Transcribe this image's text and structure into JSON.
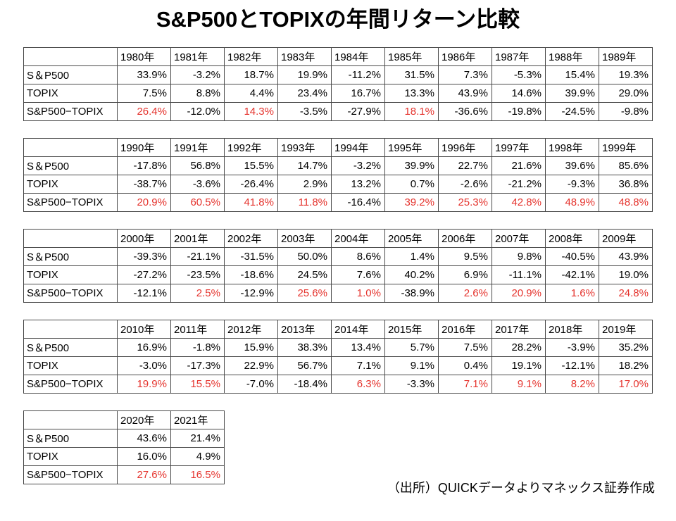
{
  "title": "S&P500とTOPIXの年間リターン比較",
  "source_note": "（出所）QUICKデータよりマネックス証券作成",
  "colors": {
    "diff_positive": "#e5332d",
    "text": "#000000",
    "border": "#4a4a4a",
    "background": "#ffffff"
  },
  "chart_data": {
    "type": "table",
    "title": "S&P500とTOPIXの年間リターン比較",
    "row_labels": [
      "S＆P500",
      "TOPIX",
      "S&P500−TOPIX"
    ],
    "row_keys": [
      "sp500",
      "topix",
      "diff"
    ],
    "value_suffix": "%",
    "note": "diff row values greater than 0 are shown in red",
    "tables": [
      {
        "years": [
          "1980年",
          "1981年",
          "1982年",
          "1983年",
          "1984年",
          "1985年",
          "1986年",
          "1987年",
          "1988年",
          "1989年"
        ],
        "sp500": [
          33.9,
          -3.2,
          18.7,
          19.9,
          -11.2,
          31.5,
          7.3,
          -5.3,
          15.4,
          19.3
        ],
        "topix": [
          7.5,
          8.8,
          4.4,
          23.4,
          16.7,
          13.3,
          43.9,
          14.6,
          39.9,
          29.0
        ],
        "diff": [
          26.4,
          -12.0,
          14.3,
          -3.5,
          -27.9,
          18.1,
          -36.6,
          -19.8,
          -24.5,
          -9.8
        ]
      },
      {
        "years": [
          "1990年",
          "1991年",
          "1992年",
          "1993年",
          "1994年",
          "1995年",
          "1996年",
          "1997年",
          "1998年",
          "1999年"
        ],
        "sp500": [
          -17.8,
          56.8,
          15.5,
          14.7,
          -3.2,
          39.9,
          22.7,
          21.6,
          39.6,
          85.6
        ],
        "topix": [
          -38.7,
          -3.6,
          -26.4,
          2.9,
          13.2,
          0.7,
          -2.6,
          -21.2,
          -9.3,
          36.8
        ],
        "diff": [
          20.9,
          60.5,
          41.8,
          11.8,
          -16.4,
          39.2,
          25.3,
          42.8,
          48.9,
          48.8
        ]
      },
      {
        "years": [
          "2000年",
          "2001年",
          "2002年",
          "2003年",
          "2004年",
          "2005年",
          "2006年",
          "2007年",
          "2008年",
          "2009年"
        ],
        "sp500": [
          -39.3,
          -21.1,
          -31.5,
          50.0,
          8.6,
          1.4,
          9.5,
          9.8,
          -40.5,
          43.9
        ],
        "topix": [
          -27.2,
          -23.5,
          -18.6,
          24.5,
          7.6,
          40.2,
          6.9,
          -11.1,
          -42.1,
          19.0
        ],
        "diff": [
          -12.1,
          2.5,
          -12.9,
          25.6,
          1.0,
          -38.9,
          2.6,
          20.9,
          1.6,
          24.8
        ]
      },
      {
        "years": [
          "2010年",
          "2011年",
          "2012年",
          "2013年",
          "2014年",
          "2015年",
          "2016年",
          "2017年",
          "2018年",
          "2019年"
        ],
        "sp500": [
          16.9,
          -1.8,
          15.9,
          38.3,
          13.4,
          5.7,
          7.5,
          28.2,
          -3.9,
          35.2
        ],
        "topix": [
          -3.0,
          -17.3,
          22.9,
          56.7,
          7.1,
          9.1,
          0.4,
          19.1,
          -12.1,
          18.2
        ],
        "diff": [
          19.9,
          15.5,
          -7.0,
          -18.4,
          6.3,
          -3.3,
          7.1,
          9.1,
          8.2,
          17.0
        ]
      },
      {
        "years": [
          "2020年",
          "2021年"
        ],
        "sp500": [
          43.6,
          21.4
        ],
        "topix": [
          16.0,
          4.9
        ],
        "diff": [
          27.6,
          16.5
        ]
      }
    ]
  }
}
